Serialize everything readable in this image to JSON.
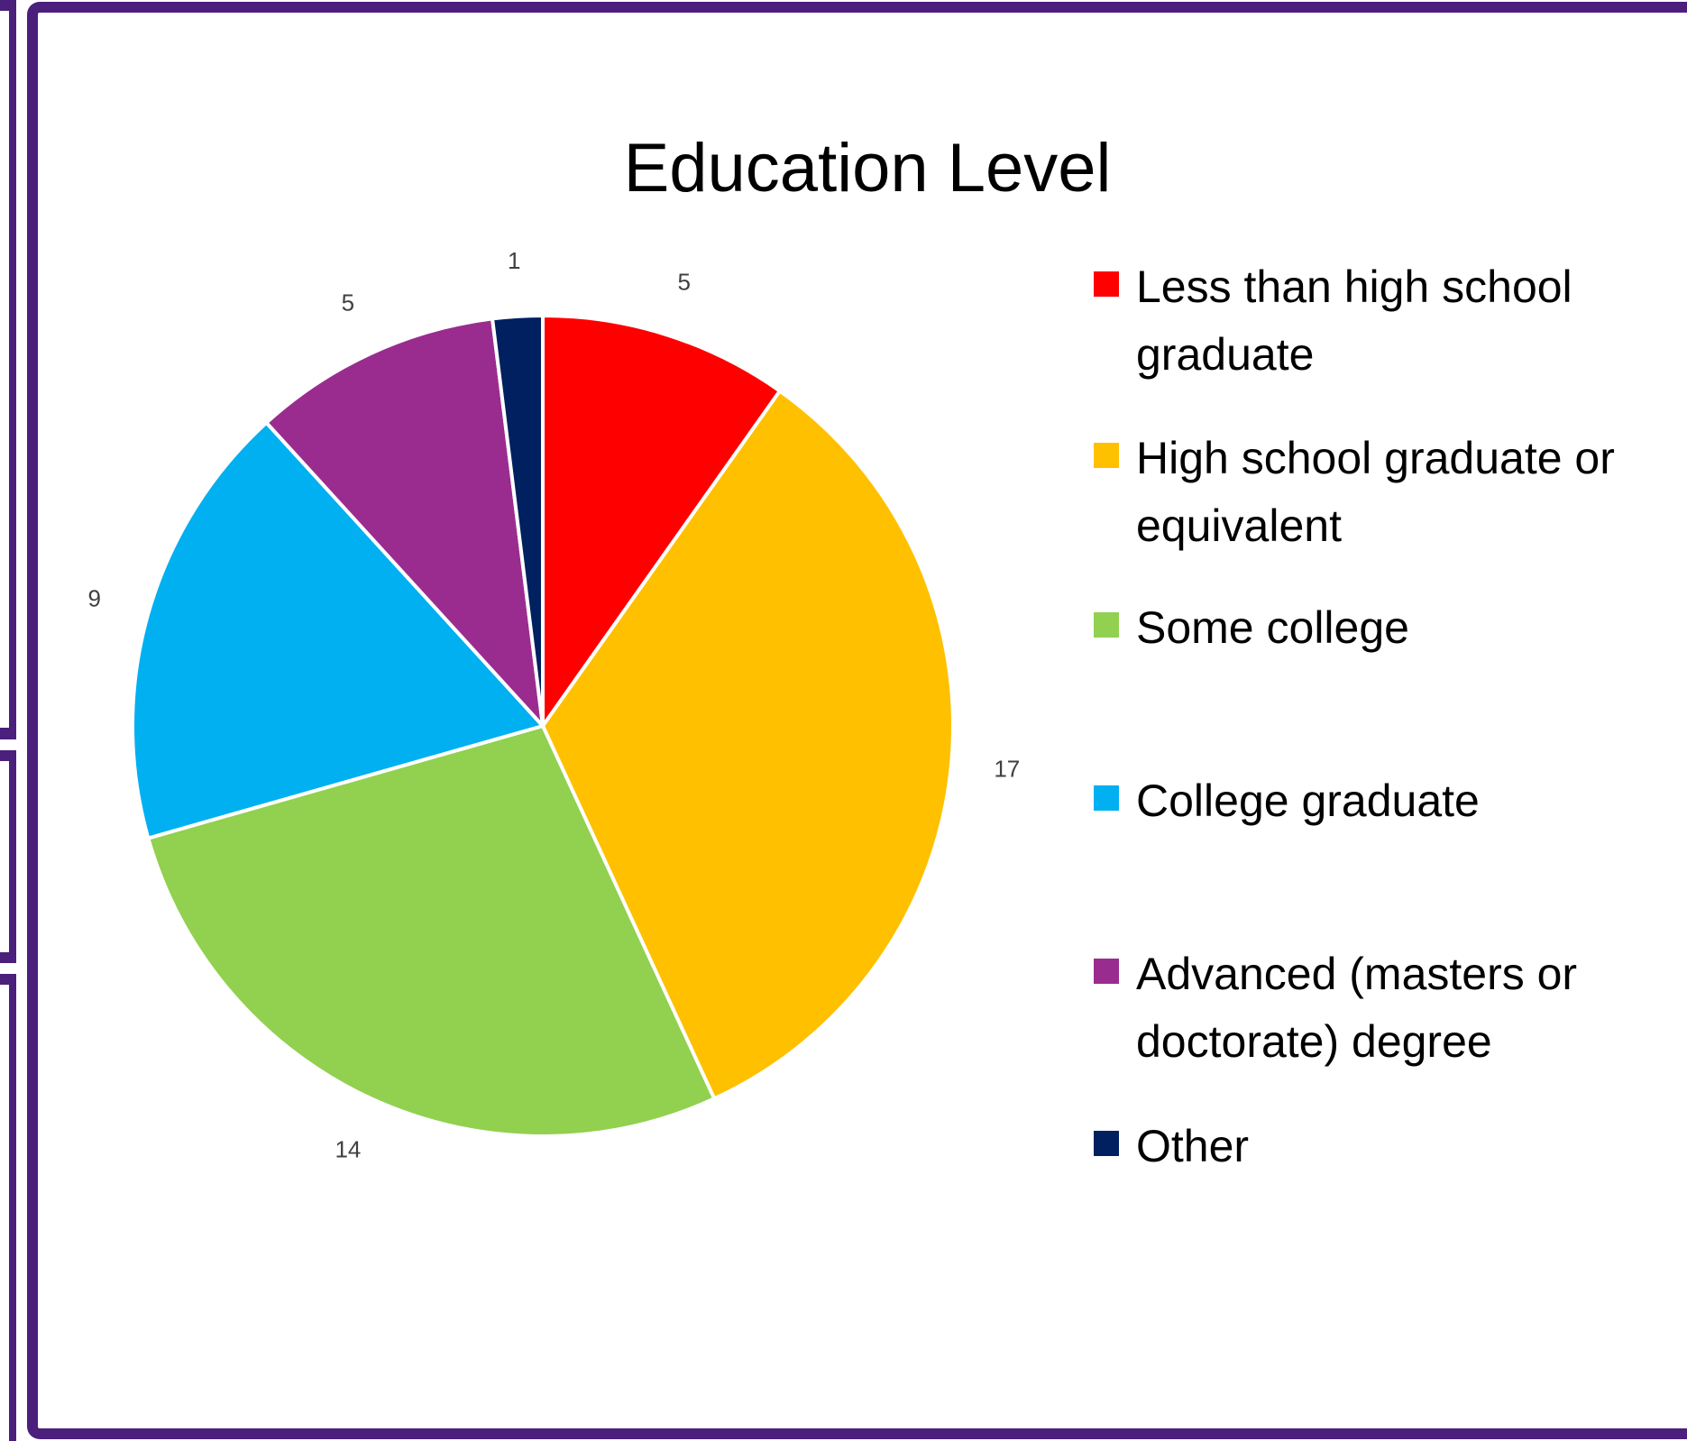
{
  "colors": {
    "frame": "#4b1f7c",
    "slice_border": "#ffffff"
  },
  "chart_data": {
    "type": "pie",
    "title": "Education Level",
    "categories": [
      "Less than high school graduate",
      "High school graduate or equivalent",
      "Some college",
      "College graduate",
      "Advanced (masters or doctorate) degree",
      "Other"
    ],
    "values": [
      5,
      17,
      14,
      9,
      5,
      1
    ],
    "colors": [
      "#ff0000",
      "#ffc000",
      "#92d050",
      "#00b0f0",
      "#9b2c8f",
      "#002060"
    ],
    "start_angle": "12 o'clock",
    "direction": "clockwise",
    "data_labels": "outside",
    "legend_position": "right"
  }
}
